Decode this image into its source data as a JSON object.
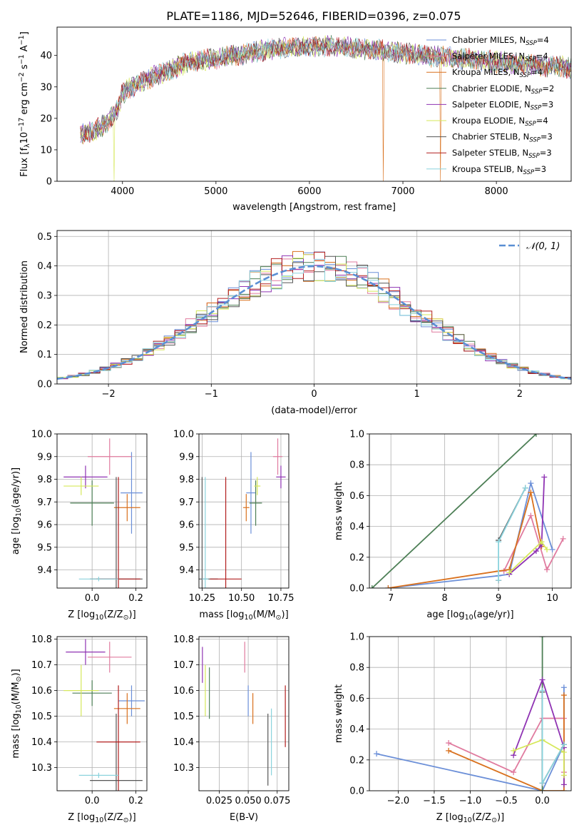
{
  "title": "PLATE=1186, MJD=52646, FIBERID=0396, z=0.075",
  "colors": {
    "Chabrier MILES": "#6b8fd8",
    "Salpeter MILES": "#e07b9f",
    "Kroupa MILES": "#d9711e",
    "Chabrier ELODIE": "#4d7f56",
    "Salpeter ELODIE": "#8f33b3",
    "Kroupa ELODIE": "#d6e85a",
    "Chabrier STELIB": "#555555",
    "Salpeter STELIB": "#b21f1f",
    "Kroupa STELIB": "#8bd3dd",
    "gauss": "#5a8fd4"
  },
  "chart_data": [
    {
      "id": "spectrum",
      "type": "line",
      "xlabel": "wavelength [Angstrom, rest frame]",
      "ylabel_parts": [
        "Flux [f",
        "λ",
        "10",
        "−17",
        " erg cm",
        "−2",
        " s",
        "−1",
        " A",
        "−1",
        "]"
      ],
      "xlim": [
        3300,
        8800
      ],
      "ylim": [
        0,
        49
      ],
      "xticks": [
        4000,
        5000,
        6000,
        7000,
        8000
      ],
      "yticks": [
        0,
        10,
        20,
        30,
        40
      ],
      "grid": false,
      "legend_position": "right",
      "series": [
        {
          "name": "Chabrier MILES",
          "nssp": "4"
        },
        {
          "name": "Salpeter MILES",
          "nssp": "4"
        },
        {
          "name": "Kroupa MILES",
          "nssp": "4"
        },
        {
          "name": "Chabrier ELODIE",
          "nssp": "2"
        },
        {
          "name": "Salpeter ELODIE",
          "nssp": "3"
        },
        {
          "name": "Kroupa ELODIE",
          "nssp": "4"
        },
        {
          "name": "Chabrier STELIB",
          "nssp": "3"
        },
        {
          "name": "Salpeter STELIB",
          "nssp": "3"
        },
        {
          "name": "Kroupa STELIB",
          "nssp": "3"
        }
      ],
      "continuum": {
        "x": [
          3550,
          3700,
          3850,
          3950,
          4000,
          4100,
          4300,
          4500,
          4700,
          5000,
          5200,
          5400,
          5600,
          5800,
          6000,
          6200,
          6400,
          6600,
          6800,
          7000,
          7200,
          7400,
          7600,
          7800,
          8000,
          8200,
          8400,
          8600,
          8800
        ],
        "y": [
          15,
          16,
          19,
          23,
          28,
          30,
          33,
          35,
          38,
          39,
          40,
          41,
          42,
          42.5,
          43,
          43,
          42.5,
          42,
          41.5,
          41,
          40,
          39.5,
          39,
          38.5,
          38,
          37.5,
          37,
          36.5,
          36
        ]
      },
      "dips": [
        {
          "x": 3910,
          "y": 0,
          "series": "Kroupa ELODIE"
        },
        {
          "x": 6790,
          "y": 0,
          "series": "Kroupa MILES"
        },
        {
          "x": 7400,
          "y": 0,
          "series": "Kroupa MILES"
        }
      ]
    },
    {
      "id": "residuals",
      "type": "histogram",
      "xlabel": "(data-model)/error",
      "ylabel": "Normed distribution",
      "xlim": [
        -2.5,
        2.5
      ],
      "ylim": [
        0,
        0.52
      ],
      "xticks": [
        -2,
        -1,
        0,
        1,
        2
      ],
      "xtick_labels": [
        "−2",
        "−1",
        "0",
        "1",
        "2"
      ],
      "yticks": [
        0,
        0.1,
        0.2,
        0.3,
        0.4,
        0.5
      ],
      "ytick_labels": [
        "0.0",
        "0.1",
        "0.2",
        "0.3",
        "0.4",
        "0.5"
      ],
      "grid": true,
      "bins": 48,
      "gauss_label": "𝒩(0, 1)",
      "legend_position": "top-right"
    },
    {
      "id": "age-vs-Z",
      "type": "scatter",
      "xlabel_parts": [
        "Z [log",
        "10",
        "(Z/Z",
        "⊙",
        ")]"
      ],
      "ylabel_parts": [
        "age  [log",
        "10",
        "(age/yr)]"
      ],
      "xlim": [
        -0.16,
        0.25
      ],
      "ylim": [
        9.32,
        10.0
      ],
      "xticks": [
        0.0,
        0.2
      ],
      "xtick_labels": [
        "0.0",
        "0.2"
      ],
      "yticks": [
        9.4,
        9.5,
        9.6,
        9.7,
        9.8,
        9.9,
        10.0
      ],
      "ytick_labels": [
        "9.4",
        "9.5",
        "9.6",
        "9.7",
        "9.8",
        "9.9",
        "10.0"
      ],
      "grid": true,
      "points": [
        {
          "series": "Chabrier MILES",
          "x": 0.18,
          "y": 9.74,
          "ex": 0.05,
          "ey": 0.18
        },
        {
          "series": "Salpeter MILES",
          "x": 0.08,
          "y": 9.9,
          "ex": 0.1,
          "ey": 0.08
        },
        {
          "series": "Kroupa MILES",
          "x": 0.16,
          "y": 9.675,
          "ex": 0.06,
          "ey": 0.06
        },
        {
          "series": "Chabrier ELODIE",
          "x": 0.0,
          "y": 9.695,
          "ex": 0.1,
          "ey": 0.1
        },
        {
          "series": "Salpeter ELODIE",
          "x": -0.03,
          "y": 9.81,
          "ex": 0.1,
          "ey": 0.05
        },
        {
          "series": "Kroupa ELODIE",
          "x": -0.05,
          "y": 9.77,
          "ex": 0.08,
          "ey": 0.04
        },
        {
          "series": "Chabrier STELIB",
          "x": 0.11,
          "y": 9.36,
          "ex": 0.12,
          "ey": 0.45
        },
        {
          "series": "Salpeter STELIB",
          "x": 0.12,
          "y": 9.36,
          "ex": 0.1,
          "ey": 0.45
        },
        {
          "series": "Kroupa STELIB",
          "x": 0.03,
          "y": 9.36,
          "ex": 0.09,
          "ey": 0.01
        }
      ]
    },
    {
      "id": "age-vs-mass",
      "type": "scatter",
      "xlabel_parts": [
        "mass [log",
        "10",
        "(M/M",
        "⊙",
        ")]"
      ],
      "ylabel_parts": [],
      "xlim": [
        10.23,
        10.8
      ],
      "ylim": [
        9.32,
        10.0
      ],
      "xticks": [
        10.25,
        10.5,
        10.75
      ],
      "xtick_labels": [
        "10.25",
        "10.50",
        "10.75"
      ],
      "yticks": [
        9.4,
        9.5,
        9.6,
        9.7,
        9.8,
        9.9,
        10.0
      ],
      "ytick_labels": [
        "9.4",
        "9.5",
        "9.6",
        "9.7",
        "9.8",
        "9.9",
        "10.0"
      ],
      "grid": true,
      "points": [
        {
          "series": "Chabrier MILES",
          "x": 10.56,
          "y": 9.74,
          "ex": 0.03,
          "ey": 0.18
        },
        {
          "series": "Salpeter MILES",
          "x": 10.73,
          "y": 9.9,
          "ex": 0.03,
          "ey": 0.08
        },
        {
          "series": "Kroupa MILES",
          "x": 10.53,
          "y": 9.675,
          "ex": 0.02,
          "ey": 0.06
        },
        {
          "series": "Chabrier ELODIE",
          "x": 10.59,
          "y": 9.695,
          "ex": 0.04,
          "ey": 0.1
        },
        {
          "series": "Salpeter ELODIE",
          "x": 10.75,
          "y": 9.81,
          "ex": 0.03,
          "ey": 0.05
        },
        {
          "series": "Kroupa ELODIE",
          "x": 10.6,
          "y": 9.77,
          "ex": 0.02,
          "ey": 0.04
        },
        {
          "series": "Chabrier STELIB",
          "x": 10.25,
          "y": 9.36,
          "ex": 0.1,
          "ey": 0.45
        },
        {
          "series": "Salpeter STELIB",
          "x": 10.4,
          "y": 9.36,
          "ex": 0.1,
          "ey": 0.45
        },
        {
          "series": "Kroupa STELIB",
          "x": 10.27,
          "y": 9.36,
          "ex": 0.02,
          "ey": 0.45
        }
      ]
    },
    {
      "id": "weight-vs-age",
      "type": "line",
      "xlabel_parts": [
        "age  [log",
        "10",
        "(age/yr)]"
      ],
      "ylabel": "mass weight",
      "xlim": [
        6.6,
        10.35
      ],
      "ylim": [
        0,
        1.0
      ],
      "xticks": [
        7,
        8,
        9,
        10
      ],
      "xtick_labels": [
        "7",
        "8",
        "9",
        "10"
      ],
      "yticks": [
        0,
        0.2,
        0.4,
        0.6,
        0.8,
        1.0
      ],
      "ytick_labels": [
        "0.0",
        "0.2",
        "0.4",
        "0.6",
        "0.8",
        "1.0"
      ],
      "grid": true,
      "series": [
        {
          "name": "Chabrier MILES",
          "x": [
            6.95,
            9.0,
            9.2,
            9.6,
            10.0
          ],
          "y": [
            0.0,
            0.08,
            0.09,
            0.68,
            0.25
          ]
        },
        {
          "name": "Salpeter MILES",
          "x": [
            9.1,
            9.6,
            9.9,
            10.2
          ],
          "y": [
            0.11,
            0.47,
            0.12,
            0.32
          ]
        },
        {
          "name": "Kroupa MILES",
          "x": [
            6.95,
            9.0,
            9.2,
            9.6,
            9.8
          ],
          "y": [
            0.0,
            0.11,
            0.12,
            0.62,
            0.27
          ]
        },
        {
          "name": "Chabrier ELODIE",
          "x": [
            6.65,
            9.7
          ],
          "y": [
            0.0,
            1.0
          ]
        },
        {
          "name": "Salpeter ELODIE",
          "x": [
            9.2,
            9.7,
            9.8,
            9.85
          ],
          "y": [
            0.09,
            0.24,
            0.28,
            0.72
          ]
        },
        {
          "name": "Kroupa ELODIE",
          "x": [
            9.2,
            9.8,
            9.9
          ],
          "y": [
            0.1,
            0.3,
            0.25
          ]
        },
        {
          "name": "Chabrier STELIB",
          "x": [
            9.0,
            9.5
          ],
          "y": [
            0.31,
            0.65
          ]
        },
        {
          "name": "Salpeter STELIB",
          "x": [
            9.0
          ],
          "y": [
            0.05
          ]
        },
        {
          "name": "Kroupa STELIB",
          "x": [
            9.0,
            9.0,
            9.5
          ],
          "y": [
            0.05,
            0.3,
            0.65
          ]
        }
      ]
    },
    {
      "id": "mass-vs-Z",
      "type": "scatter",
      "xlabel_parts": [
        "Z [log",
        "10",
        "(Z/Z",
        "⊙",
        ")]"
      ],
      "ylabel_parts": [
        "mass [log",
        "10",
        "(M/M",
        "⊙",
        ")]"
      ],
      "xlim": [
        -0.16,
        0.25
      ],
      "ylim": [
        10.21,
        10.81
      ],
      "xticks": [
        0.0,
        0.2
      ],
      "xtick_labels": [
        "0.0",
        "0.2"
      ],
      "yticks": [
        10.3,
        10.4,
        10.5,
        10.6,
        10.7,
        10.8
      ],
      "ytick_labels": [
        "10.3",
        "10.4",
        "10.5",
        "10.6",
        "10.7",
        "10.8"
      ],
      "grid": true,
      "points": [
        {
          "series": "Chabrier MILES",
          "x": 0.18,
          "y": 10.56,
          "ex": 0.06,
          "ey": 0.06
        },
        {
          "series": "Salpeter MILES",
          "x": 0.08,
          "y": 10.73,
          "ex": 0.1,
          "ey": 0.06
        },
        {
          "series": "Kroupa MILES",
          "x": 0.16,
          "y": 10.53,
          "ex": 0.06,
          "ey": 0.06
        },
        {
          "series": "Chabrier ELODIE",
          "x": 0.0,
          "y": 10.59,
          "ex": 0.09,
          "ey": 0.05
        },
        {
          "series": "Salpeter ELODIE",
          "x": -0.03,
          "y": 10.75,
          "ex": 0.09,
          "ey": 0.05
        },
        {
          "series": "Kroupa ELODIE",
          "x": -0.05,
          "y": 10.6,
          "ex": 0.08,
          "ey": 0.1
        },
        {
          "series": "Chabrier STELIB",
          "x": 0.11,
          "y": 10.25,
          "ex": 0.12,
          "ey": 0.26
        },
        {
          "series": "Salpeter STELIB",
          "x": 0.12,
          "y": 10.4,
          "ex": 0.1,
          "ey": 0.22
        },
        {
          "series": "Kroupa STELIB",
          "x": 0.03,
          "y": 10.27,
          "ex": 0.09,
          "ey": 0.01
        }
      ]
    },
    {
      "id": "mass-vs-ebv",
      "type": "scatter",
      "xlabel": "E(B-V)",
      "ylabel_parts": [],
      "xlim": [
        0.0075,
        0.085
      ],
      "ylim": [
        10.21,
        10.81
      ],
      "xticks": [
        0.025,
        0.05,
        0.075
      ],
      "xtick_labels": [
        "0.025",
        "0.050",
        "0.075"
      ],
      "yticks": [
        10.3,
        10.4,
        10.5,
        10.6,
        10.7,
        10.8
      ],
      "ytick_labels": [
        "10.3",
        "10.4",
        "10.5",
        "10.6",
        "10.7",
        "10.8"
      ],
      "grid": true,
      "points": [
        {
          "series": "Chabrier MILES",
          "x": 0.05,
          "y": 10.56,
          "ex": 0,
          "ey": 0.06
        },
        {
          "series": "Salpeter MILES",
          "x": 0.047,
          "y": 10.73,
          "ex": 0,
          "ey": 0.06
        },
        {
          "series": "Kroupa MILES",
          "x": 0.054,
          "y": 10.53,
          "ex": 0,
          "ey": 0.06
        },
        {
          "series": "Chabrier ELODIE",
          "x": 0.0165,
          "y": 10.59,
          "ex": 0,
          "ey": 0.1
        },
        {
          "series": "Salpeter ELODIE",
          "x": 0.0105,
          "y": 10.7,
          "ex": 0,
          "ey": 0.07
        },
        {
          "series": "Kroupa ELODIE",
          "x": 0.013,
          "y": 10.6,
          "ex": 0,
          "ey": 0.1
        },
        {
          "series": "Chabrier STELIB",
          "x": 0.067,
          "y": 10.37,
          "ex": 0,
          "ey": 0.14
        },
        {
          "series": "Salpeter STELIB",
          "x": 0.082,
          "y": 10.5,
          "ex": 0,
          "ey": 0.12
        },
        {
          "series": "Kroupa STELIB",
          "x": 0.07,
          "y": 10.4,
          "ex": 0,
          "ey": 0.13
        }
      ]
    },
    {
      "id": "weight-vs-Z",
      "type": "line",
      "xlabel_parts": [
        "Z [log",
        "10",
        "(Z/Z",
        "⊙",
        ")]"
      ],
      "ylabel": "mass weight",
      "xlim": [
        -2.4,
        0.4
      ],
      "ylim": [
        0,
        1.0
      ],
      "xticks": [
        -2.0,
        -1.5,
        -1.0,
        -0.5,
        0.0
      ],
      "xtick_labels": [
        "−2.0",
        "−1.5",
        "−1.0",
        "−0.5",
        "0.0"
      ],
      "yticks": [
        0,
        0.2,
        0.4,
        0.6,
        0.8,
        1.0
      ],
      "ytick_labels": [
        "0.0",
        "0.2",
        "0.4",
        "0.6",
        "0.8",
        "1.0"
      ],
      "grid": true,
      "series": [
        {
          "name": "Chabrier MILES",
          "x": [
            -2.3,
            0.0,
            0.3,
            0.3
          ],
          "y": [
            0.24,
            0.0,
            0.3,
            0.67
          ]
        },
        {
          "name": "Salpeter MILES",
          "x": [
            -1.3,
            -0.4,
            0.0,
            0.3,
            0.3
          ],
          "y": [
            0.31,
            0.12,
            0.47,
            0.47,
            0.12
          ]
        },
        {
          "name": "Kroupa MILES",
          "x": [
            -1.3,
            0.0,
            0.3,
            0.3
          ],
          "y": [
            0.26,
            0.0,
            0.0,
            0.62
          ]
        },
        {
          "name": "Chabrier ELODIE",
          "x": [
            0.0,
            0.0
          ],
          "y": [
            0.0,
            1.0
          ]
        },
        {
          "name": "Salpeter ELODIE",
          "x": [
            -0.4,
            0.0,
            0.3,
            0.3
          ],
          "y": [
            0.23,
            0.72,
            0.28,
            0.04
          ]
        },
        {
          "name": "Kroupa ELODIE",
          "x": [
            -0.4,
            0.0,
            0.3,
            0.3
          ],
          "y": [
            0.26,
            0.33,
            0.25,
            0.1
          ]
        },
        {
          "name": "Chabrier STELIB",
          "x": [
            0.0,
            0.0,
            0.3
          ],
          "y": [
            0.64,
            0.05,
            0.3
          ]
        },
        {
          "name": "Salpeter STELIB",
          "x": [
            0.0
          ],
          "y": [
            0.05
          ]
        },
        {
          "name": "Kroupa STELIB",
          "x": [
            0.0,
            0.0,
            0.3
          ],
          "y": [
            0.65,
            0.05,
            0.3
          ]
        }
      ]
    }
  ]
}
